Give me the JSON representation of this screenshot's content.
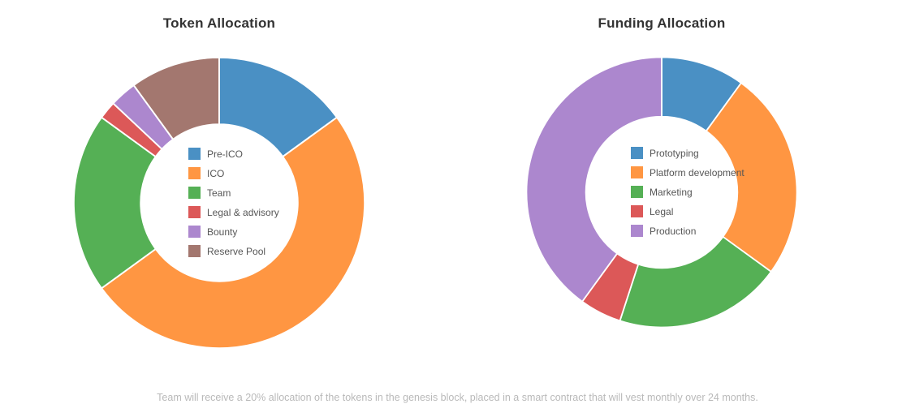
{
  "chart_data": [
    {
      "type": "pie",
      "title": "Token Allocation",
      "labels": [
        "Pre-ICO",
        "ICO",
        "Team",
        "Legal & advisory",
        "Bounty",
        "Reserve Pool"
      ],
      "values": [
        15,
        50,
        20,
        2,
        3,
        10
      ],
      "unit": "%",
      "colors": [
        "#4a90c4",
        "#ff9642",
        "#55b055",
        "#dc5858",
        "#ac87ce",
        "#a3776f"
      ],
      "hole": 0.54,
      "rotation_start_deg": 0,
      "direction": "clockwise",
      "legend_position": "center"
    },
    {
      "type": "pie",
      "title": "Funding Allocation",
      "labels": [
        "Prototyping",
        "Platform development",
        "Marketing",
        "Legal",
        "Production"
      ],
      "values": [
        10,
        25,
        20,
        5,
        40
      ],
      "unit": "%",
      "colors": [
        "#4a90c4",
        "#ff9642",
        "#55b055",
        "#dc5858",
        "#ac87ce"
      ],
      "hole": 0.56,
      "rotation_start_deg": 0,
      "direction": "clockwise",
      "legend_position": "center"
    }
  ],
  "caption": "Team will receive a 20% allocation of the tokens in the genesis block, placed in a smart contract that will vest monthly over 24 months."
}
